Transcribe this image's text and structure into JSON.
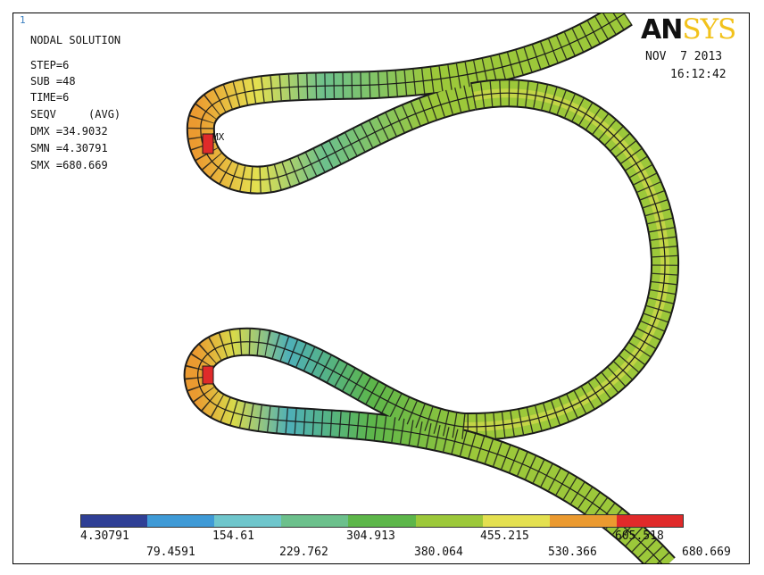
{
  "window": {
    "number": "1"
  },
  "logo": {
    "part1": "AN",
    "part2": "SYS"
  },
  "solution": {
    "title": "NODAL SOLUTION",
    "lines": [
      "STEP=6",
      "SUB =48",
      "TIME=6",
      "SEQV     (AVG)",
      "DMX =34.9032",
      "SMN =4.30791",
      "SMX =680.669"
    ]
  },
  "datetime": {
    "date": "NOV  7 2013",
    "time": "16:12:42"
  },
  "markers": {
    "mx": "MX"
  },
  "legend": {
    "colors": [
      "#2f3f95",
      "#3f9ad6",
      "#6fc6cc",
      "#6cc08c",
      "#5db64a",
      "#9cc83a",
      "#e4e050",
      "#eb9a30",
      "#e02a2a"
    ],
    "labels_top": [
      "4.30791",
      "154.61",
      "304.913",
      "455.215",
      "605.518"
    ],
    "labels_bottom": [
      "79.4591",
      "229.762",
      "380.064",
      "530.366",
      "680.669"
    ]
  },
  "chart_data": {
    "type": "heatmap",
    "quantity": "SEQV (AVG)",
    "min": 4.30791,
    "max": 680.669,
    "contour_levels": [
      4.30791,
      79.4591,
      154.61,
      229.762,
      304.913,
      380.064,
      455.215,
      530.366,
      605.518,
      680.669
    ]
  }
}
